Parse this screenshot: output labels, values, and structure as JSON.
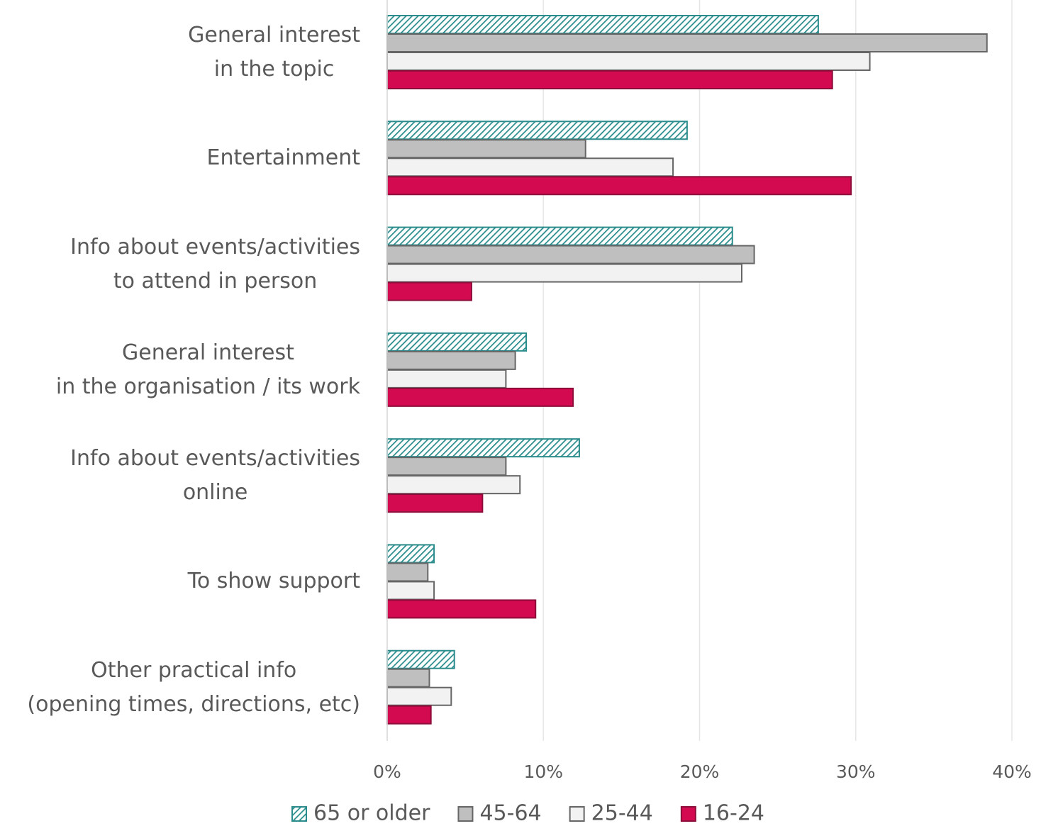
{
  "chart_data": {
    "type": "hbar",
    "categories": [
      "General interest\nin the topic",
      "Entertainment",
      "Info about events/activities\nto attend in person",
      "General interest\nin the organisation / its work",
      "Info about events/activities\nonline",
      "To show support",
      "Other practical info\n(opening times, directions, etc)"
    ],
    "series": [
      {
        "name": "65 or older",
        "color": "#2a8c8c",
        "pattern": "hatched",
        "values": [
          27.6,
          19.2,
          22.1,
          8.9,
          12.3,
          3.0,
          4.3
        ]
      },
      {
        "name": "45-64",
        "color": "#bfbfbf",
        "values": [
          38.4,
          12.7,
          23.5,
          8.2,
          7.6,
          2.6,
          2.7
        ]
      },
      {
        "name": "25-44",
        "color": "#f2f2f2",
        "values": [
          30.9,
          18.3,
          22.7,
          7.6,
          8.5,
          3.0,
          4.1
        ]
      },
      {
        "name": "16-24",
        "color": "#d40a50",
        "values": [
          28.5,
          29.7,
          5.4,
          11.9,
          6.1,
          9.5,
          2.8
        ]
      }
    ],
    "xlim": [
      0,
      40
    ],
    "xticks": [
      {
        "value": 0,
        "label": "0%"
      },
      {
        "value": 10,
        "label": "10%"
      },
      {
        "value": 20,
        "label": "20%"
      },
      {
        "value": 30,
        "label": "30%"
      },
      {
        "value": 40,
        "label": "40%"
      }
    ],
    "grid": true,
    "legend": "bottom"
  }
}
